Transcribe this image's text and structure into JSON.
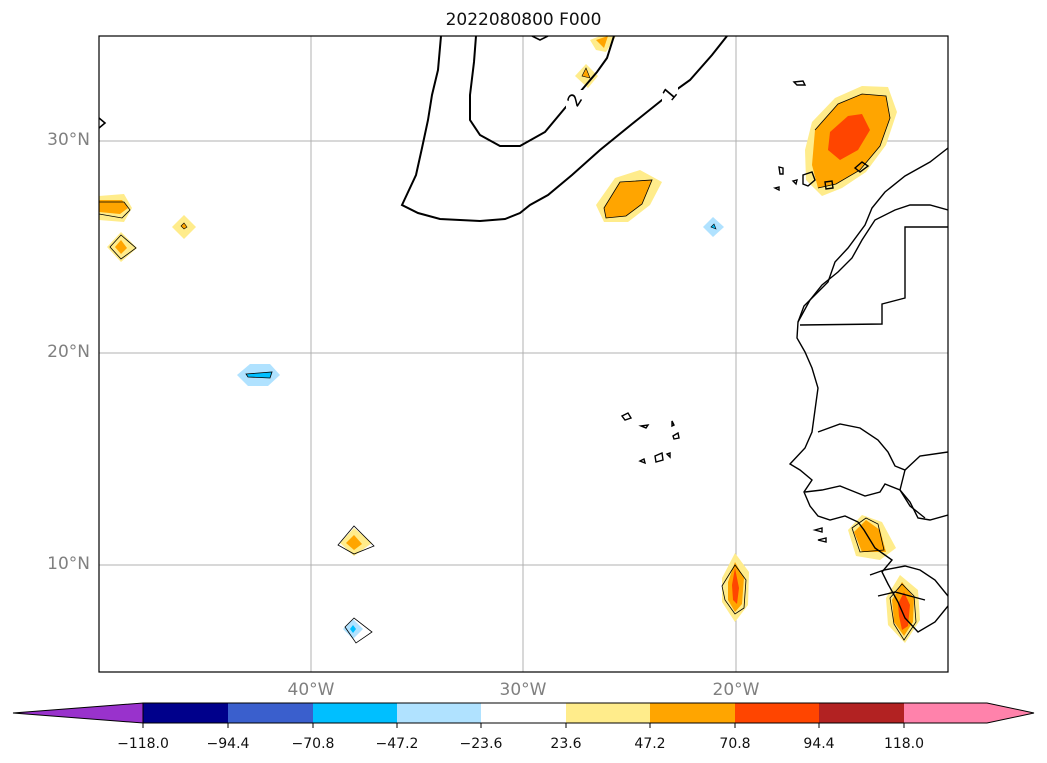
{
  "title": "2022080800 F000",
  "axes": {
    "lat_labels": [
      "30°N",
      "20°N",
      "10°N"
    ],
    "lon_labels": [
      "40°W",
      "30°W",
      "20°W"
    ]
  },
  "contour_labels": [
    "2",
    "1"
  ],
  "colorbar": {
    "levels": [
      "−118.0",
      "−94.4",
      "−70.8",
      "−47.2",
      "−23.6",
      "23.6",
      "47.2",
      "70.8",
      "94.4",
      "118.0"
    ],
    "colors": [
      "#9932cc",
      "#00008b",
      "#3a5fcd",
      "#00bfff",
      "#b0e2ff",
      "#ffffff",
      "#ffec8b",
      "#ffa500",
      "#ff4500",
      "#b22222",
      "#ff82ab"
    ]
  }
}
